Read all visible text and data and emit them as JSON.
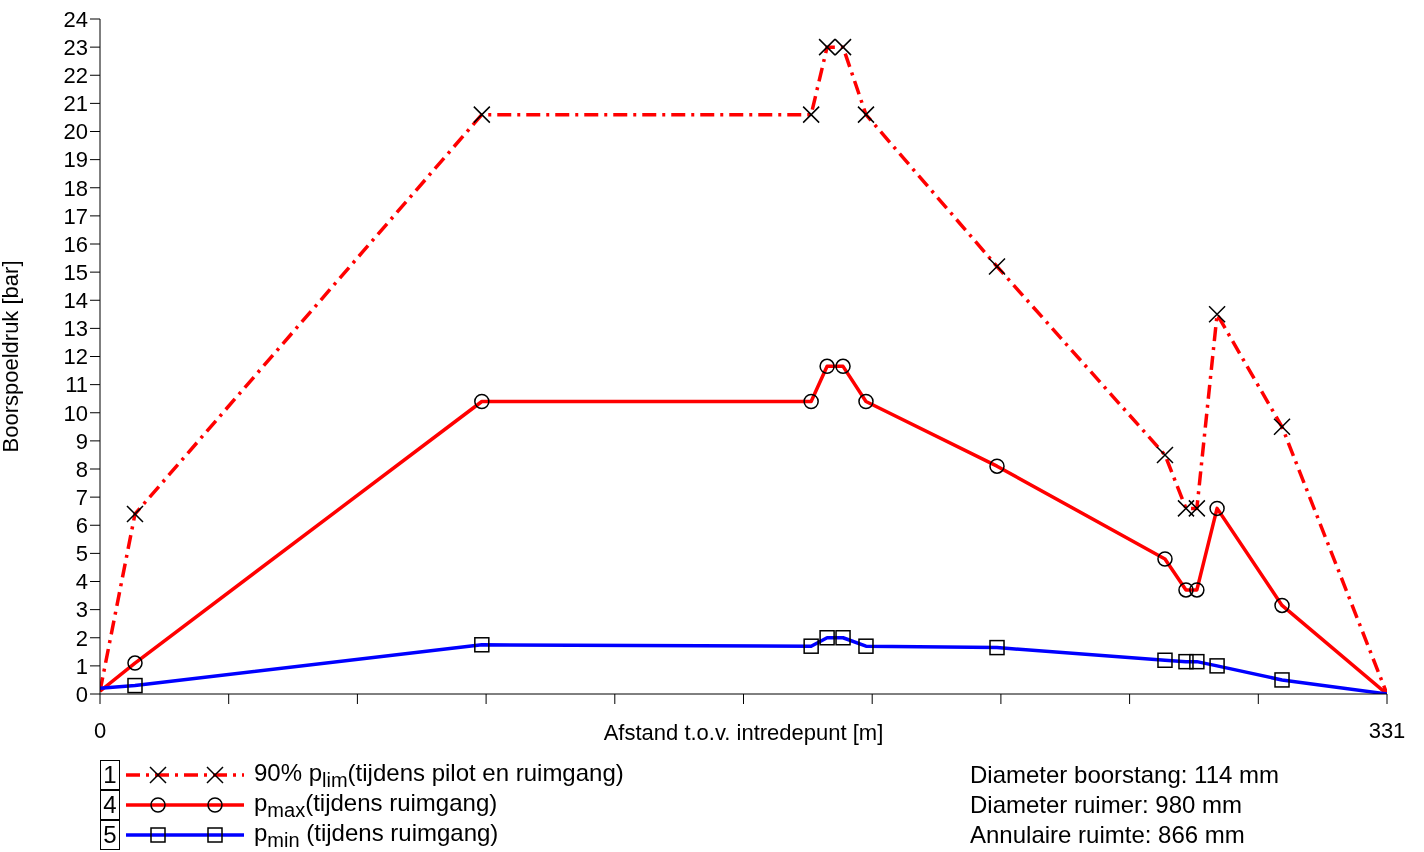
{
  "chart_data": {
    "type": "line",
    "ylabel": "Boorspoeldruk [bar]",
    "xlabel": "Afstand t.o.v. intredepunt [m]",
    "x": [
      0,
      9,
      98.2,
      182.9,
      187,
      191.1,
      197,
      230.7,
      273.9,
      279.3,
      282.1,
      287.3,
      304,
      331
    ],
    "xlim": [
      0,
      331
    ],
    "xticks": [
      0,
      {
        "value": 33.1,
        "label": null
      },
      {
        "value": 66.2,
        "label": null
      },
      {
        "value": 99.3,
        "label": null
      },
      {
        "value": 132.4,
        "label": null
      },
      {
        "value": 165.5,
        "label": null
      },
      {
        "value": 198.6,
        "label": null
      },
      {
        "value": 231.7,
        "label": null
      },
      {
        "value": 264.8,
        "label": null
      },
      {
        "value": 297.9,
        "label": null
      },
      331
    ],
    "ylim": [
      0,
      24
    ],
    "yticks": [
      0,
      1,
      2,
      3,
      4,
      5,
      6,
      7,
      8,
      9,
      10,
      11,
      12,
      13,
      14,
      15,
      16,
      17,
      18,
      19,
      20,
      21,
      22,
      23,
      24
    ],
    "grid": false,
    "legend": "bottom left",
    "series": [
      {
        "name": "90% p$_{lim}$(tijdens pilot en ruimgang)",
        "color": "#ff0000",
        "marker": "cross",
        "line_style": "dashed",
        "values": [
          0.1,
          6.4,
          20.6,
          20.6,
          23.0,
          23.0,
          20.6,
          15.2,
          8.5,
          6.6,
          6.6,
          13.5,
          9.5,
          0
        ]
      },
      {
        "name": "p$_{max}$(tijdens ruimgang)",
        "color": "#ff0000",
        "marker": "circle",
        "line_style": "solid",
        "values": [
          0.1,
          1.1,
          10.4,
          10.4,
          11.65,
          11.65,
          10.4,
          8.1,
          4.8,
          3.7,
          3.7,
          6.6,
          3.15,
          0
        ]
      },
      {
        "name": "p$_{min}$ (tijdens ruimgang)",
        "color": "#0000ff",
        "marker": "square",
        "line_style": "solid",
        "values": [
          0.2,
          0.3,
          1.75,
          1.7,
          2.0,
          2.0,
          1.7,
          1.65,
          1.2,
          1.15,
          1.15,
          1.0,
          0.5,
          0
        ]
      }
    ],
    "annotations": [
      "1",
      "4",
      "5",
      "Diameter boorstang: 114 mm",
      "Diameter ruimer: 980 mm",
      "Annulaire ruimte: 866 mm"
    ]
  }
}
